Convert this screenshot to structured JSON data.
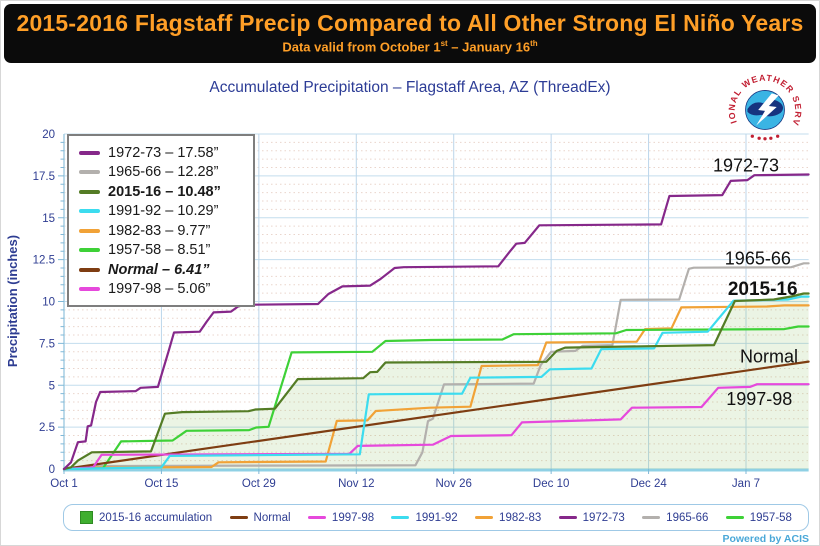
{
  "banner": {
    "title": "2015-2016 Flagstaff Precip Compared to All Other Strong El Niño Years",
    "title_color": "#ff9f27",
    "subtitle": {
      "prefix": "Data valid from October 1",
      "sup1": "st",
      "mid": " – January 16",
      "sup2": "th"
    }
  },
  "logo": {
    "arc_text": "NATIONAL WEATHER SERVICE"
  },
  "footer": {
    "powered_by": "Powered by ACIS"
  },
  "chart_data": {
    "type": "line",
    "title": "Accumulated Precipitation – Flagstaff Area, AZ (ThreadEx)",
    "xlabel": "",
    "ylabel": "Precipitation (inches)",
    "ylim": [
      0,
      20
    ],
    "y_ticks": [
      "0",
      "2.5",
      "5",
      "7.5",
      "10",
      "12.5",
      "15",
      "17.5",
      "20"
    ],
    "x_range_days": [
      0,
      107
    ],
    "x_ticks": [
      {
        "day": 0,
        "label": "Oct 1"
      },
      {
        "day": 14,
        "label": "Oct 15"
      },
      {
        "day": 28,
        "label": "Oct 29"
      },
      {
        "day": 42,
        "label": "Nov 12"
      },
      {
        "day": 56,
        "label": "Nov 26"
      },
      {
        "day": 70,
        "label": "Dec 10"
      },
      {
        "day": 84,
        "label": "Dec 24"
      },
      {
        "day": 98,
        "label": "Jan 7"
      }
    ],
    "grid": "on",
    "legend_position": "upper-left",
    "fill_series": "2015-16",
    "fill_color": "#86bb5f",
    "draw_order": [
      "1965-66",
      "1982-83",
      "1957-58",
      "Normal",
      "1997-98",
      "1991-92",
      "2015-16",
      "1972-73"
    ],
    "series": [
      {
        "name": "1972-73",
        "total": "17.58”",
        "color": "#86288a",
        "legend_style": "normal",
        "points": [
          [
            0,
            0
          ],
          [
            1,
            0.4
          ],
          [
            2,
            1.6
          ],
          [
            3.1,
            1.65
          ],
          [
            3.4,
            2.55
          ],
          [
            3.9,
            2.6
          ],
          [
            4.6,
            4.0
          ],
          [
            5.2,
            4.6
          ],
          [
            10.3,
            4.65
          ],
          [
            11,
            4.85
          ],
          [
            13.5,
            4.9
          ],
          [
            15,
            7.0
          ],
          [
            15.8,
            8.15
          ],
          [
            19.5,
            8.2
          ],
          [
            20.5,
            8.8
          ],
          [
            21.5,
            9.35
          ],
          [
            24,
            9.4
          ],
          [
            25,
            9.7
          ],
          [
            26,
            9.8
          ],
          [
            36.5,
            9.85
          ],
          [
            38,
            10.45
          ],
          [
            40,
            10.9
          ],
          [
            44,
            10.95
          ],
          [
            45.5,
            11.35
          ],
          [
            47.5,
            12.0
          ],
          [
            48.8,
            12.05
          ],
          [
            62.4,
            12.1
          ],
          [
            64,
            12.95
          ],
          [
            65,
            13.45
          ],
          [
            66.2,
            13.5
          ],
          [
            68.3,
            14.55
          ],
          [
            85.8,
            14.6
          ],
          [
            87,
            16.3
          ],
          [
            94.6,
            16.35
          ],
          [
            95.8,
            17.2
          ],
          [
            98.2,
            17.25
          ],
          [
            99.2,
            17.54
          ],
          [
            107,
            17.58
          ]
        ]
      },
      {
        "name": "1965-66",
        "total": "12.28”",
        "color": "#b3b0ad",
        "legend_style": "normal",
        "points": [
          [
            0,
            0
          ],
          [
            3,
            0.1
          ],
          [
            4,
            0.18
          ],
          [
            50.5,
            0.22
          ],
          [
            51.5,
            1.0
          ],
          [
            52.3,
            2.86
          ],
          [
            53,
            3.0
          ],
          [
            54.6,
            5.05
          ],
          [
            67.5,
            5.1
          ],
          [
            68.5,
            6.2
          ],
          [
            70,
            7.0
          ],
          [
            73.5,
            7.05
          ],
          [
            74.5,
            7.35
          ],
          [
            78.8,
            7.4
          ],
          [
            80,
            10.1
          ],
          [
            88.4,
            10.12
          ],
          [
            89.8,
            11.95
          ],
          [
            90.5,
            12.02
          ],
          [
            104.5,
            12.05
          ],
          [
            106.3,
            12.28
          ],
          [
            107,
            12.28
          ]
        ]
      },
      {
        "name": "2015-16",
        "total": "10.48”",
        "color": "#547c25",
        "legend_style": "bold",
        "points": [
          [
            0,
            0
          ],
          [
            1,
            0.1
          ],
          [
            2,
            0.5
          ],
          [
            4,
            1.0
          ],
          [
            12.5,
            1.05
          ],
          [
            14.5,
            3.3
          ],
          [
            17,
            3.4
          ],
          [
            26.5,
            3.45
          ],
          [
            27.5,
            3.55
          ],
          [
            30.3,
            3.6
          ],
          [
            33.6,
            5.37
          ],
          [
            43,
            5.42
          ],
          [
            44,
            5.78
          ],
          [
            45,
            5.8
          ],
          [
            46.2,
            6.36
          ],
          [
            69.3,
            6.4
          ],
          [
            70.8,
            7.05
          ],
          [
            72,
            7.25
          ],
          [
            93.4,
            7.4
          ],
          [
            96.4,
            10.03
          ],
          [
            102,
            10.12
          ],
          [
            104.5,
            10.3
          ],
          [
            106.3,
            10.48
          ],
          [
            107,
            10.48
          ]
        ]
      },
      {
        "name": "1991-92",
        "total": "10.29”",
        "color": "#3cdcef",
        "legend_style": "normal",
        "points": [
          [
            0,
            0
          ],
          [
            14,
            0.1
          ],
          [
            15.2,
            0.78
          ],
          [
            42.5,
            0.88
          ],
          [
            43.8,
            4.46
          ],
          [
            57.2,
            4.5
          ],
          [
            58.4,
            5.45
          ],
          [
            68.6,
            5.5
          ],
          [
            69.8,
            5.95
          ],
          [
            75.8,
            6.0
          ],
          [
            77.2,
            7.15
          ],
          [
            84.8,
            7.2
          ],
          [
            86,
            8.13
          ],
          [
            92.5,
            8.2
          ],
          [
            96.2,
            10.05
          ],
          [
            104,
            10.12
          ],
          [
            106,
            10.29
          ],
          [
            107,
            10.29
          ]
        ]
      },
      {
        "name": "1982-83",
        "total": "9.77”",
        "color": "#f1a237",
        "legend_style": "normal",
        "points": [
          [
            0,
            0
          ],
          [
            1.5,
            0.08
          ],
          [
            21.2,
            0.12
          ],
          [
            22.2,
            0.4
          ],
          [
            37.6,
            0.45
          ],
          [
            39.2,
            2.87
          ],
          [
            43.6,
            2.9
          ],
          [
            44.8,
            3.46
          ],
          [
            52.6,
            3.66
          ],
          [
            58.4,
            3.72
          ],
          [
            60,
            6.15
          ],
          [
            68.1,
            6.2
          ],
          [
            69.3,
            7.55
          ],
          [
            82.3,
            7.6
          ],
          [
            83.5,
            8.35
          ],
          [
            87.3,
            8.4
          ],
          [
            88.7,
            9.65
          ],
          [
            101,
            9.7
          ],
          [
            103.5,
            9.77
          ],
          [
            107,
            9.77
          ]
        ]
      },
      {
        "name": "1957-58",
        "total": "8.51”",
        "color": "#3ed137",
        "legend_style": "normal",
        "points": [
          [
            0,
            0
          ],
          [
            5.6,
            0.05
          ],
          [
            7,
            0.9
          ],
          [
            8.2,
            1.65
          ],
          [
            15.6,
            1.7
          ],
          [
            17.6,
            2.28
          ],
          [
            26.6,
            2.32
          ],
          [
            27.6,
            2.48
          ],
          [
            29.4,
            2.52
          ],
          [
            32.7,
            6.96
          ],
          [
            44.3,
            7.0
          ],
          [
            46.2,
            7.64
          ],
          [
            52.7,
            7.7
          ],
          [
            63,
            7.73
          ],
          [
            64.6,
            8.05
          ],
          [
            79.3,
            8.1
          ],
          [
            80.8,
            8.3
          ],
          [
            103.5,
            8.35
          ],
          [
            105.5,
            8.51
          ],
          [
            107,
            8.51
          ]
        ]
      },
      {
        "name": "Normal",
        "total": "6.41”",
        "color": "#7e3d12",
        "legend_style": "bold-italic",
        "points": [
          [
            0,
            0
          ],
          [
            107,
            6.41
          ]
        ]
      },
      {
        "name": "1997-98",
        "total": "5.06”",
        "color": "#e649dc",
        "legend_style": "normal",
        "points": [
          [
            0,
            0
          ],
          [
            4.2,
            0.1
          ],
          [
            5.4,
            0.85
          ],
          [
            41,
            0.9
          ],
          [
            42.2,
            1.38
          ],
          [
            53,
            1.45
          ],
          [
            55.6,
            1.97
          ],
          [
            64.3,
            2.02
          ],
          [
            65.8,
            2.78
          ],
          [
            80,
            2.96
          ],
          [
            81.6,
            3.66
          ],
          [
            91.6,
            3.7
          ],
          [
            94,
            4.85
          ],
          [
            98.6,
            4.9
          ],
          [
            99.6,
            5.06
          ],
          [
            107,
            5.06
          ]
        ]
      }
    ],
    "annotations": [
      {
        "text": "1972-73",
        "day": 98.0,
        "value": 17.75,
        "bold": false,
        "size": 18
      },
      {
        "text": "1965-66",
        "day": 99.7,
        "value": 12.2,
        "bold": false,
        "size": 18
      },
      {
        "text": "2015-16",
        "day": 100.4,
        "value": 10.4,
        "bold": true,
        "size": 19
      },
      {
        "text": "Normal",
        "day": 101.3,
        "value": 6.35,
        "bold": false,
        "size": 18
      },
      {
        "text": "1997-98",
        "day": 99.9,
        "value": 3.82,
        "bold": false,
        "size": 18
      }
    ]
  },
  "bottom_legend": {
    "items": [
      {
        "label": "2015-16 accumulation",
        "color": "#3fae2f",
        "swatch": "square"
      },
      {
        "label": "Normal",
        "color": "#7e3d12",
        "swatch": "line"
      },
      {
        "label": "1997-98",
        "color": "#e649dc",
        "swatch": "line"
      },
      {
        "label": "1991-92",
        "color": "#3cdcef",
        "swatch": "line"
      },
      {
        "label": "1982-83",
        "color": "#f1a237",
        "swatch": "line"
      },
      {
        "label": "1972-73",
        "color": "#86288a",
        "swatch": "line"
      },
      {
        "label": "1965-66",
        "color": "#b3b0ad",
        "swatch": "line"
      },
      {
        "label": "1957-58",
        "color": "#3ed137",
        "swatch": "line"
      }
    ]
  }
}
